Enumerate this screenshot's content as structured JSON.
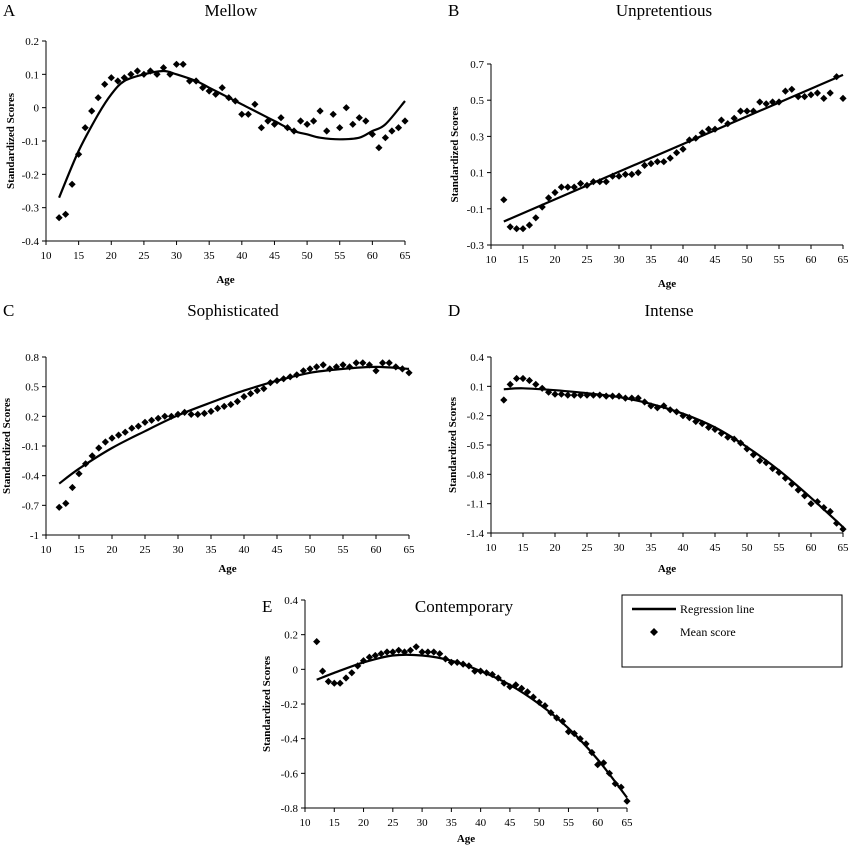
{
  "chart_data": [
    {
      "panel": "A",
      "title": "Mellow",
      "type": "scatter",
      "xlabel": "Age",
      "ylabel": "Standardized Scores",
      "xlim": [
        10,
        65
      ],
      "ylim": [
        -0.4,
        0.2
      ],
      "xticks": [
        "10",
        "15",
        "20",
        "25",
        "30",
        "35",
        "40",
        "45",
        "50",
        "55",
        "60",
        "65"
      ],
      "yticks": [
        "-0.4",
        "-0.3",
        "-0.2",
        "-0.1",
        "0",
        "0.1",
        "0.2"
      ],
      "series": [
        {
          "name": "Mean score",
          "kind": "points",
          "x": [
            12,
            13,
            14,
            15,
            16,
            17,
            18,
            19,
            20,
            21,
            22,
            23,
            24,
            25,
            26,
            27,
            28,
            29,
            30,
            31,
            32,
            33,
            34,
            35,
            36,
            37,
            38,
            39,
            40,
            41,
            42,
            43,
            44,
            45,
            46,
            47,
            48,
            49,
            50,
            51,
            52,
            53,
            54,
            55,
            56,
            57,
            58,
            59,
            60,
            61,
            62,
            63,
            64,
            65
          ],
          "y": [
            -0.33,
            -0.32,
            -0.23,
            -0.14,
            -0.06,
            -0.01,
            0.03,
            0.07,
            0.09,
            0.08,
            0.09,
            0.1,
            0.11,
            0.1,
            0.11,
            0.1,
            0.12,
            0.1,
            0.13,
            0.13,
            0.08,
            0.08,
            0.06,
            0.05,
            0.04,
            0.06,
            0.03,
            0.02,
            -0.02,
            -0.02,
            0.01,
            -0.06,
            -0.04,
            -0.05,
            -0.03,
            -0.06,
            -0.07,
            -0.04,
            -0.05,
            -0.04,
            -0.01,
            -0.07,
            -0.02,
            -0.06,
            0,
            -0.05,
            -0.03,
            -0.04,
            -0.08,
            -0.12,
            -0.09,
            -0.07,
            -0.06,
            -0.04
          ]
        },
        {
          "name": "Regression line",
          "kind": "line",
          "x": [
            12,
            15,
            18,
            20,
            22,
            25,
            28,
            30,
            33,
            35,
            38,
            40,
            42,
            45,
            48,
            50,
            52,
            55,
            58,
            60,
            62,
            65
          ],
          "y": [
            -0.27,
            -0.13,
            -0.02,
            0.04,
            0.08,
            0.1,
            0.11,
            0.1,
            0.08,
            0.06,
            0.03,
            0.01,
            -0.01,
            -0.04,
            -0.07,
            -0.08,
            -0.09,
            -0.095,
            -0.09,
            -0.07,
            -0.05,
            0.02
          ]
        }
      ]
    },
    {
      "panel": "B",
      "title": "Unpretentious",
      "type": "scatter",
      "xlabel": "Age",
      "ylabel": "Standardized Scores",
      "xlim": [
        10,
        65
      ],
      "ylim": [
        -0.3,
        0.7
      ],
      "xticks": [
        "10",
        "15",
        "20",
        "25",
        "30",
        "35",
        "40",
        "45",
        "50",
        "55",
        "60",
        "65"
      ],
      "yticks": [
        "-0.3",
        "-0.1",
        "0.1",
        "0.3",
        "0.5",
        "0.7"
      ],
      "series": [
        {
          "name": "Mean score",
          "kind": "points",
          "x": [
            12,
            13,
            14,
            15,
            16,
            17,
            18,
            19,
            20,
            21,
            22,
            23,
            24,
            25,
            26,
            27,
            28,
            29,
            30,
            31,
            32,
            33,
            34,
            35,
            36,
            37,
            38,
            39,
            40,
            41,
            42,
            43,
            44,
            45,
            46,
            47,
            48,
            49,
            50,
            51,
            52,
            53,
            54,
            55,
            56,
            57,
            58,
            59,
            60,
            61,
            62,
            63,
            64,
            65
          ],
          "y": [
            -0.05,
            -0.2,
            -0.21,
            -0.21,
            -0.19,
            -0.15,
            -0.09,
            -0.04,
            -0.01,
            0.02,
            0.02,
            0.02,
            0.04,
            0.03,
            0.05,
            0.05,
            0.05,
            0.08,
            0.08,
            0.09,
            0.09,
            0.1,
            0.14,
            0.15,
            0.16,
            0.16,
            0.18,
            0.21,
            0.23,
            0.28,
            0.29,
            0.32,
            0.34,
            0.34,
            0.39,
            0.37,
            0.4,
            0.44,
            0.44,
            0.44,
            0.49,
            0.48,
            0.49,
            0.49,
            0.55,
            0.56,
            0.52,
            0.52,
            0.53,
            0.54,
            0.51,
            0.54,
            0.63,
            0.51
          ]
        },
        {
          "name": "Regression line",
          "kind": "line",
          "x": [
            12,
            65
          ],
          "y": [
            -0.17,
            0.64
          ]
        }
      ]
    },
    {
      "panel": "C",
      "title": "Sophisticated",
      "type": "scatter",
      "xlabel": "Age",
      "ylabel": "Standardized Scores",
      "xlim": [
        10,
        65
      ],
      "ylim": [
        -1.0,
        0.8
      ],
      "xticks": [
        "10",
        "15",
        "20",
        "25",
        "30",
        "35",
        "40",
        "45",
        "50",
        "55",
        "60",
        "65"
      ],
      "yticks": [
        "-1",
        "-0.7",
        "-0.4",
        "-0.1",
        "0.2",
        "0.5",
        "0.8"
      ],
      "series": [
        {
          "name": "Mean score",
          "kind": "points",
          "x": [
            12,
            13,
            14,
            15,
            16,
            17,
            18,
            19,
            20,
            21,
            22,
            23,
            24,
            25,
            26,
            27,
            28,
            29,
            30,
            31,
            32,
            33,
            34,
            35,
            36,
            37,
            38,
            39,
            40,
            41,
            42,
            43,
            44,
            45,
            46,
            47,
            48,
            49,
            50,
            51,
            52,
            53,
            54,
            55,
            56,
            57,
            58,
            59,
            60,
            61,
            62,
            63,
            64,
            65
          ],
          "y": [
            -0.72,
            -0.68,
            -0.52,
            -0.38,
            -0.28,
            -0.2,
            -0.12,
            -0.06,
            -0.02,
            0.01,
            0.04,
            0.08,
            0.1,
            0.14,
            0.16,
            0.18,
            0.2,
            0.2,
            0.22,
            0.24,
            0.22,
            0.22,
            0.23,
            0.25,
            0.28,
            0.3,
            0.32,
            0.35,
            0.4,
            0.43,
            0.46,
            0.48,
            0.54,
            0.56,
            0.58,
            0.6,
            0.62,
            0.66,
            0.68,
            0.7,
            0.72,
            0.68,
            0.7,
            0.72,
            0.7,
            0.74,
            0.74,
            0.72,
            0.66,
            0.74,
            0.74,
            0.7,
            0.68,
            0.64
          ]
        },
        {
          "name": "Regression line",
          "kind": "line",
          "x": [
            12,
            15,
            20,
            25,
            30,
            35,
            40,
            45,
            50,
            55,
            60,
            65
          ],
          "y": [
            -0.48,
            -0.33,
            -0.12,
            0.05,
            0.21,
            0.34,
            0.46,
            0.56,
            0.64,
            0.68,
            0.7,
            0.68
          ]
        }
      ]
    },
    {
      "panel": "D",
      "title": "Intense",
      "type": "scatter",
      "xlabel": "Age",
      "ylabel": "Standardized Scores",
      "xlim": [
        10,
        65
      ],
      "ylim": [
        -1.4,
        0.4
      ],
      "xticks": [
        "10",
        "15",
        "20",
        "25",
        "30",
        "35",
        "40",
        "45",
        "50",
        "55",
        "60",
        "65"
      ],
      "yticks": [
        "-1.4",
        "-1.1",
        "-0.8",
        "-0.5",
        "-0.2",
        "0.1",
        "0.4"
      ],
      "series": [
        {
          "name": "Mean score",
          "kind": "points",
          "x": [
            12,
            13,
            14,
            15,
            16,
            17,
            18,
            19,
            20,
            21,
            22,
            23,
            24,
            25,
            26,
            27,
            28,
            29,
            30,
            31,
            32,
            33,
            34,
            35,
            36,
            37,
            38,
            39,
            40,
            41,
            42,
            43,
            44,
            45,
            46,
            47,
            48,
            49,
            50,
            51,
            52,
            53,
            54,
            55,
            56,
            57,
            58,
            59,
            60,
            61,
            62,
            63,
            64,
            65
          ],
          "y": [
            -0.04,
            0.12,
            0.18,
            0.18,
            0.16,
            0.12,
            0.08,
            0.04,
            0.02,
            0.02,
            0.01,
            0.01,
            0.01,
            0.01,
            0.01,
            0.01,
            0.0,
            0.0,
            0.0,
            -0.02,
            -0.02,
            -0.02,
            -0.06,
            -0.1,
            -0.12,
            -0.1,
            -0.14,
            -0.16,
            -0.2,
            -0.22,
            -0.26,
            -0.28,
            -0.32,
            -0.34,
            -0.38,
            -0.42,
            -0.44,
            -0.48,
            -0.54,
            -0.6,
            -0.66,
            -0.68,
            -0.74,
            -0.78,
            -0.84,
            -0.9,
            -0.96,
            -1.02,
            -1.1,
            -1.08,
            -1.14,
            -1.18,
            -1.3,
            -1.36
          ]
        },
        {
          "name": "Regression line",
          "kind": "line",
          "x": [
            12,
            15,
            20,
            25,
            30,
            35,
            40,
            45,
            50,
            55,
            60,
            65
          ],
          "y": [
            0.07,
            0.08,
            0.06,
            0.03,
            -0.01,
            -0.08,
            -0.18,
            -0.32,
            -0.52,
            -0.76,
            -1.04,
            -1.34
          ]
        }
      ]
    },
    {
      "panel": "E",
      "title": "Contemporary",
      "type": "scatter",
      "xlabel": "Age",
      "ylabel": "Standardized Scores",
      "xlim": [
        10,
        65
      ],
      "ylim": [
        -0.8,
        0.4
      ],
      "xticks": [
        "10",
        "15",
        "20",
        "25",
        "30",
        "35",
        "40",
        "45",
        "50",
        "55",
        "60",
        "65"
      ],
      "yticks": [
        "-0.8",
        "-0.6",
        "-0.4",
        "-0.2",
        "0",
        "0.2",
        "0.4"
      ],
      "series": [
        {
          "name": "Mean score",
          "kind": "points",
          "x": [
            12,
            13,
            14,
            15,
            16,
            17,
            18,
            19,
            20,
            21,
            22,
            23,
            24,
            25,
            26,
            27,
            28,
            29,
            30,
            31,
            32,
            33,
            34,
            35,
            36,
            37,
            38,
            39,
            40,
            41,
            42,
            43,
            44,
            45,
            46,
            47,
            48,
            49,
            50,
            51,
            52,
            53,
            54,
            55,
            56,
            57,
            58,
            59,
            60,
            61,
            62,
            63,
            64,
            65
          ],
          "y": [
            0.16,
            -0.01,
            -0.07,
            -0.08,
            -0.08,
            -0.05,
            -0.02,
            0.02,
            0.05,
            0.07,
            0.08,
            0.09,
            0.1,
            0.1,
            0.11,
            0.1,
            0.11,
            0.13,
            0.1,
            0.1,
            0.1,
            0.09,
            0.06,
            0.04,
            0.04,
            0.03,
            0.02,
            -0.01,
            -0.01,
            -0.02,
            -0.03,
            -0.05,
            -0.08,
            -0.1,
            -0.09,
            -0.11,
            -0.13,
            -0.16,
            -0.19,
            -0.21,
            -0.25,
            -0.28,
            -0.3,
            -0.36,
            -0.37,
            -0.4,
            -0.43,
            -0.48,
            -0.55,
            -0.54,
            -0.6,
            -0.66,
            -0.68,
            -0.76
          ]
        },
        {
          "name": "Regression line",
          "kind": "line",
          "x": [
            12,
            15,
            20,
            25,
            30,
            35,
            40,
            45,
            50,
            55,
            60,
            65
          ],
          "y": [
            -0.06,
            -0.02,
            0.04,
            0.08,
            0.08,
            0.05,
            -0.01,
            -0.09,
            -0.2,
            -0.34,
            -0.52,
            -0.74
          ]
        }
      ]
    }
  ],
  "legend": {
    "line_label": "Regression line",
    "point_label": "Mean score"
  }
}
